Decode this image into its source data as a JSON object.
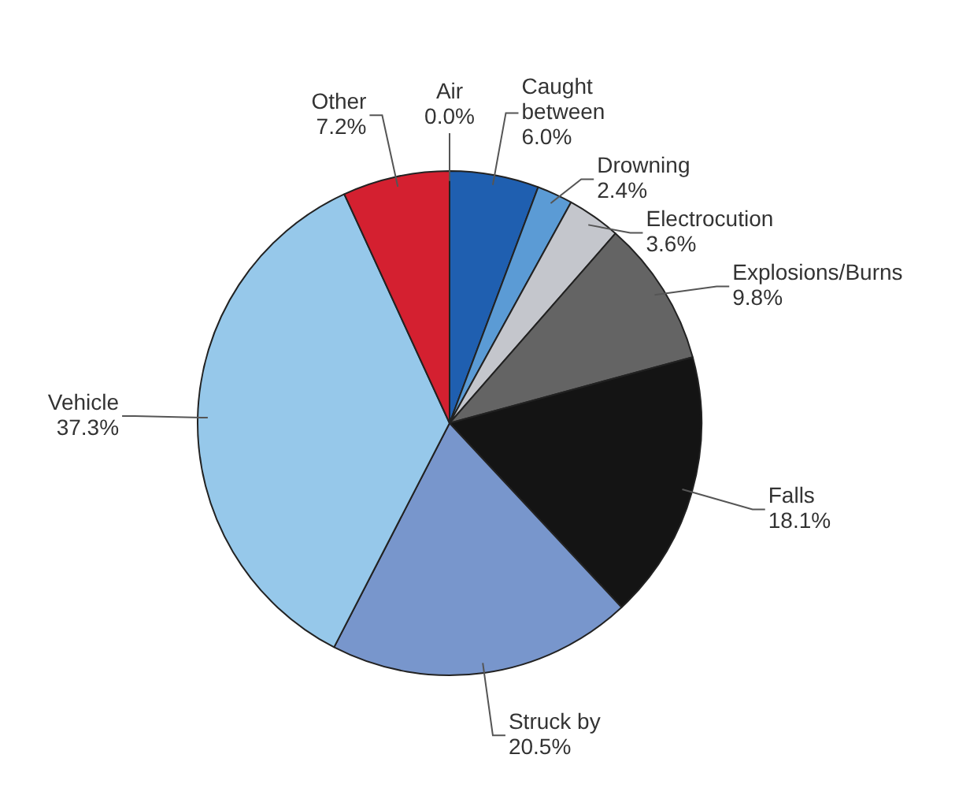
{
  "chart_data": {
    "type": "pie",
    "categories": [
      "Air",
      "Caught between",
      "Drowning",
      "Electrocution",
      "Explosions/Burns",
      "Falls",
      "Struck by",
      "Vehicle",
      "Other"
    ],
    "values": [
      0.0,
      6.0,
      2.4,
      3.6,
      9.8,
      18.1,
      20.5,
      37.3,
      7.2
    ],
    "value_labels": [
      "0.0%",
      "6.0%",
      "2.4%",
      "3.6%",
      "9.8%",
      "18.1%",
      "20.5%",
      "37.3%",
      "7.2%"
    ],
    "colors": [
      "#1f5fb0",
      "#1f5fb0",
      "#5b9bd5",
      "#c4c6cc",
      "#646464",
      "#141414",
      "#7896cc",
      "#96c8ea",
      "#d42030"
    ],
    "legend": false
  }
}
